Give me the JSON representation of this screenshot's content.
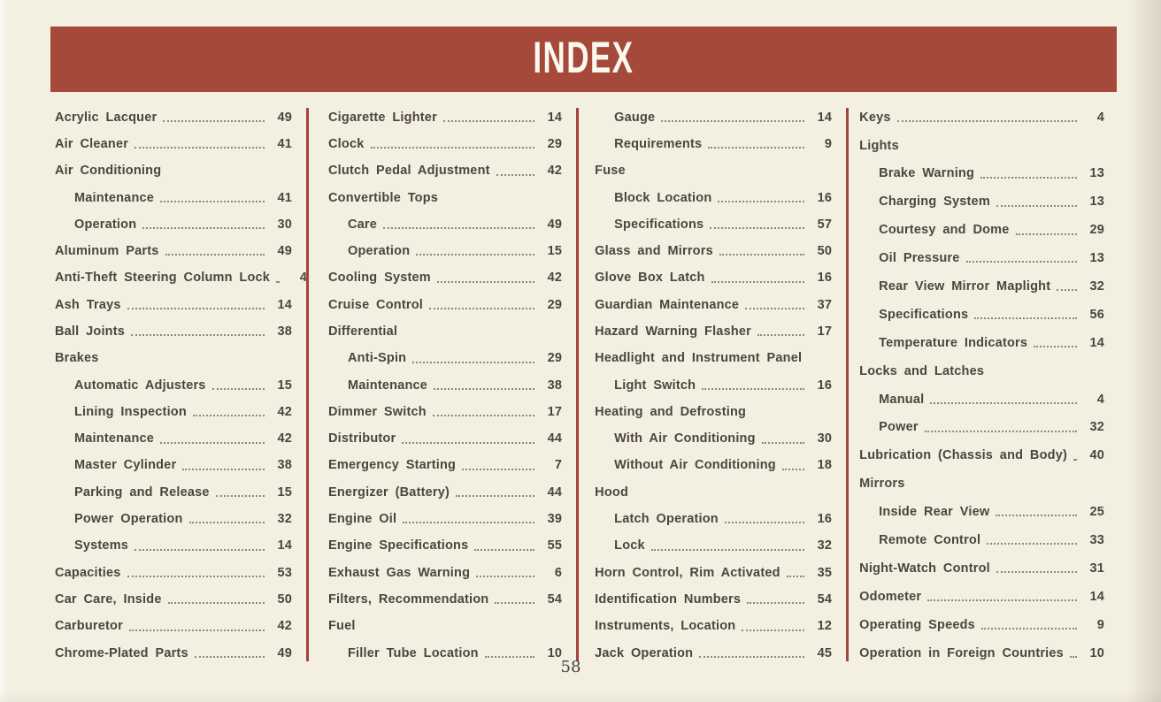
{
  "page": {
    "title": "INDEX",
    "page_number": "58",
    "colors": {
      "background": "#f4f0e1",
      "band": "#a5493b",
      "divider": "#a4453c",
      "text": "#4b4540"
    }
  },
  "columns": [
    {
      "entries": [
        {
          "label": "Acrylic Lacquer",
          "page": "49",
          "indent": 0
        },
        {
          "label": "Air Cleaner",
          "page": "41",
          "indent": 0
        },
        {
          "label": "Air Conditioning",
          "page": "",
          "indent": 0
        },
        {
          "label": "Maintenance",
          "page": "41",
          "indent": 1
        },
        {
          "label": "Operation",
          "page": "30",
          "indent": 1
        },
        {
          "label": "Aluminum Parts",
          "page": "49",
          "indent": 0
        },
        {
          "label": "Anti-Theft Steering Column Lock",
          "page": "4",
          "indent": 0
        },
        {
          "label": "Ash Trays",
          "page": "14",
          "indent": 0
        },
        {
          "label": "Ball Joints",
          "page": "38",
          "indent": 0
        },
        {
          "label": "Brakes",
          "page": "",
          "indent": 0
        },
        {
          "label": "Automatic Adjusters",
          "page": "15",
          "indent": 1
        },
        {
          "label": "Lining Inspection",
          "page": "42",
          "indent": 1
        },
        {
          "label": "Maintenance",
          "page": "42",
          "indent": 1
        },
        {
          "label": "Master Cylinder",
          "page": "38",
          "indent": 1
        },
        {
          "label": "Parking and Release",
          "page": "15",
          "indent": 1
        },
        {
          "label": "Power Operation",
          "page": "32",
          "indent": 1
        },
        {
          "label": "Systems",
          "page": "14",
          "indent": 1
        },
        {
          "label": "Capacities",
          "page": "53",
          "indent": 0
        },
        {
          "label": "Car Care, Inside",
          "page": "50",
          "indent": 0
        },
        {
          "label": "Carburetor",
          "page": "42",
          "indent": 0
        },
        {
          "label": "Chrome-Plated Parts",
          "page": "49",
          "indent": 0
        }
      ]
    },
    {
      "entries": [
        {
          "label": "Cigarette Lighter",
          "page": "14",
          "indent": 0
        },
        {
          "label": "Clock",
          "page": "29",
          "indent": 0
        },
        {
          "label": "Clutch Pedal Adjustment",
          "page": "42",
          "indent": 0
        },
        {
          "label": "Convertible Tops",
          "page": "",
          "indent": 0
        },
        {
          "label": "Care",
          "page": "49",
          "indent": 1
        },
        {
          "label": "Operation",
          "page": "15",
          "indent": 1
        },
        {
          "label": "Cooling System",
          "page": "42",
          "indent": 0
        },
        {
          "label": "Cruise Control",
          "page": "29",
          "indent": 0
        },
        {
          "label": "Differential",
          "page": "",
          "indent": 0
        },
        {
          "label": "Anti-Spin",
          "page": "29",
          "indent": 1
        },
        {
          "label": "Maintenance",
          "page": "38",
          "indent": 1
        },
        {
          "label": "Dimmer Switch",
          "page": "17",
          "indent": 0
        },
        {
          "label": "Distributor",
          "page": "44",
          "indent": 0
        },
        {
          "label": "Emergency Starting",
          "page": "7",
          "indent": 0
        },
        {
          "label": "Energizer (Battery)",
          "page": "44",
          "indent": 0
        },
        {
          "label": "Engine Oil",
          "page": "39",
          "indent": 0
        },
        {
          "label": "Engine Specifications",
          "page": "55",
          "indent": 0
        },
        {
          "label": "Exhaust Gas Warning",
          "page": "6",
          "indent": 0
        },
        {
          "label": "Filters, Recommendation",
          "page": "54",
          "indent": 0
        },
        {
          "label": "Fuel",
          "page": "",
          "indent": 0
        },
        {
          "label": "Filler Tube Location",
          "page": "10",
          "indent": 1
        }
      ]
    },
    {
      "entries": [
        {
          "label": "Gauge",
          "page": "14",
          "indent": 1
        },
        {
          "label": "Requirements",
          "page": "9",
          "indent": 1
        },
        {
          "label": "Fuse",
          "page": "",
          "indent": 0
        },
        {
          "label": "Block Location",
          "page": "16",
          "indent": 1
        },
        {
          "label": "Specifications",
          "page": "57",
          "indent": 1
        },
        {
          "label": "Glass and Mirrors",
          "page": "50",
          "indent": 0
        },
        {
          "label": "Glove Box Latch",
          "page": "16",
          "indent": 0
        },
        {
          "label": "Guardian Maintenance",
          "page": "37",
          "indent": 0
        },
        {
          "label": "Hazard Warning Flasher",
          "page": "17",
          "indent": 0
        },
        {
          "label": "Headlight and Instrument Panel",
          "page": "",
          "indent": 0
        },
        {
          "label": "Light Switch",
          "page": "16",
          "indent": 1
        },
        {
          "label": "Heating and Defrosting",
          "page": "",
          "indent": 0
        },
        {
          "label": "With Air Conditioning",
          "page": "30",
          "indent": 1
        },
        {
          "label": "Without Air Conditioning",
          "page": "18",
          "indent": 1
        },
        {
          "label": "Hood",
          "page": "",
          "indent": 0
        },
        {
          "label": "Latch Operation",
          "page": "16",
          "indent": 1
        },
        {
          "label": "Lock",
          "page": "32",
          "indent": 1
        },
        {
          "label": "Horn Control, Rim Activated",
          "page": "35",
          "indent": 0
        },
        {
          "label": "Identification Numbers",
          "page": "54",
          "indent": 0
        },
        {
          "label": "Instruments, Location",
          "page": "12",
          "indent": 0
        },
        {
          "label": "Jack Operation",
          "page": "45",
          "indent": 0
        }
      ]
    },
    {
      "entries": [
        {
          "label": "Keys",
          "page": "4",
          "indent": 0
        },
        {
          "label": "Lights",
          "page": "",
          "indent": 0
        },
        {
          "label": "Brake Warning",
          "page": "13",
          "indent": 1
        },
        {
          "label": "Charging System",
          "page": "13",
          "indent": 1
        },
        {
          "label": "Courtesy and Dome",
          "page": "29",
          "indent": 1
        },
        {
          "label": "Oil Pressure",
          "page": "13",
          "indent": 1
        },
        {
          "label": "Rear View Mirror Maplight",
          "page": "32",
          "indent": 1
        },
        {
          "label": "Specifications",
          "page": "56",
          "indent": 1
        },
        {
          "label": "Temperature Indicators",
          "page": "14",
          "indent": 1
        },
        {
          "label": "Locks and Latches",
          "page": "",
          "indent": 0
        },
        {
          "label": "Manual",
          "page": "4",
          "indent": 1
        },
        {
          "label": "Power",
          "page": "32",
          "indent": 1
        },
        {
          "label": "Lubrication (Chassis and Body)",
          "page": "40",
          "indent": 0
        },
        {
          "label": "Mirrors",
          "page": "",
          "indent": 0
        },
        {
          "label": "Inside Rear View",
          "page": "25",
          "indent": 1
        },
        {
          "label": "Remote Control",
          "page": "33",
          "indent": 1
        },
        {
          "label": "Night-Watch Control",
          "page": "31",
          "indent": 0
        },
        {
          "label": "Odometer",
          "page": "14",
          "indent": 0
        },
        {
          "label": "Operating Speeds",
          "page": "9",
          "indent": 0
        },
        {
          "label": "Operation in Foreign Countries",
          "page": "10",
          "indent": 0
        }
      ]
    }
  ]
}
